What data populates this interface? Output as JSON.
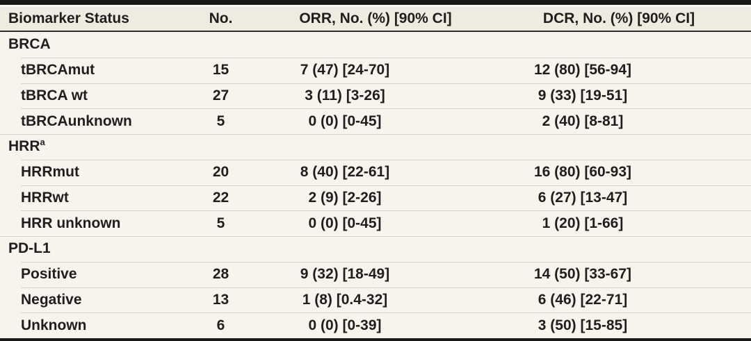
{
  "table": {
    "columns": [
      "Biomarker Status",
      "No.",
      "ORR, No. (%) [90% CI]",
      "DCR, No. (%) [90% CI]"
    ],
    "sections": [
      {
        "label": "BRCA",
        "footnote_marker": "",
        "rows": [
          {
            "label": "tBRCAmut",
            "no": "15",
            "orr": "7 (47) [24-70]",
            "dcr": "12 (80) [56-94]"
          },
          {
            "label": "tBRCA wt",
            "no": "27",
            "orr": "3 (11) [3-26]",
            "dcr": "9 (33) [19-51]"
          },
          {
            "label": "tBRCAunknown",
            "no": "5",
            "orr": "0 (0) [0-45]",
            "dcr": "2 (40) [8-81]"
          }
        ]
      },
      {
        "label": "HRR",
        "footnote_marker": "a",
        "rows": [
          {
            "label": "HRRmut",
            "no": "20",
            "orr": "8 (40) [22-61]",
            "dcr": "16 (80) [60-93]"
          },
          {
            "label": "HRRwt",
            "no": "22",
            "orr": "2 (9) [2-26]",
            "dcr": "6 (27) [13-47]"
          },
          {
            "label": "HRR unknown",
            "no": "5",
            "orr": "0 (0) [0-45]",
            "dcr": "1 (20) [1-66]"
          }
        ]
      },
      {
        "label": "PD-L1",
        "footnote_marker": "",
        "rows": [
          {
            "label": "Positive",
            "no": "28",
            "orr": "9 (32) [18-49]",
            "dcr": "14 (50) [33-67]"
          },
          {
            "label": "Negative",
            "no": "13",
            "orr": "1 (8) [0.4-32]",
            "dcr": "6 (46) [22-71]"
          },
          {
            "label": "Unknown",
            "no": "6",
            "orr": "0 (0) [0-39]",
            "dcr": "3 (50) [15-85]"
          }
        ]
      }
    ],
    "colors": {
      "header_background": "#efebe1",
      "body_background": "#f7f4ed",
      "heavy_rule": "#1a1917",
      "header_underline": "#2e2d2a",
      "row_separator": "#d7d3c9",
      "text": "#1f1e1c"
    }
  }
}
